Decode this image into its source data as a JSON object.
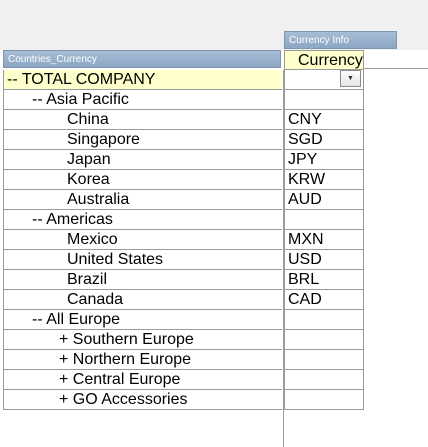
{
  "headers": {
    "left": "Countries_Currency",
    "right": "Currency Info",
    "currency_column": "Currency"
  },
  "rows": [
    {
      "label": "-- TOTAL COMPANY",
      "currency": "",
      "indent": 0
    },
    {
      "label": "-- Asia Pacific",
      "currency": "",
      "indent": 1
    },
    {
      "label": "China",
      "currency": "CNY",
      "indent": 2
    },
    {
      "label": "Singapore",
      "currency": "SGD",
      "indent": 2
    },
    {
      "label": "Japan",
      "currency": "JPY",
      "indent": 2
    },
    {
      "label": "Korea",
      "currency": "KRW",
      "indent": 2
    },
    {
      "label": "Australia",
      "currency": "AUD",
      "indent": 2
    },
    {
      "label": "-- Americas",
      "currency": "",
      "indent": 1
    },
    {
      "label": "Mexico",
      "currency": "MXN",
      "indent": 2
    },
    {
      "label": "United States",
      "currency": "USD",
      "indent": 2
    },
    {
      "label": "Brazil",
      "currency": "BRL",
      "indent": 2
    },
    {
      "label": "Canada",
      "currency": "CAD",
      "indent": 2
    },
    {
      "label": "-- All Europe",
      "currency": "",
      "indent": 1
    },
    {
      "label": "+ Southern Europe",
      "currency": "",
      "indent": 3
    },
    {
      "label": "+ Northern Europe",
      "currency": "",
      "indent": 3
    },
    {
      "label": "+ Central Europe",
      "currency": "",
      "indent": 3
    },
    {
      "label": "+ GO Accessories",
      "currency": "",
      "indent": 3
    }
  ],
  "colors": {
    "header_bg": "#97afca",
    "total_row_bg": "#ffffcc",
    "grid": "#9a9a9a"
  }
}
